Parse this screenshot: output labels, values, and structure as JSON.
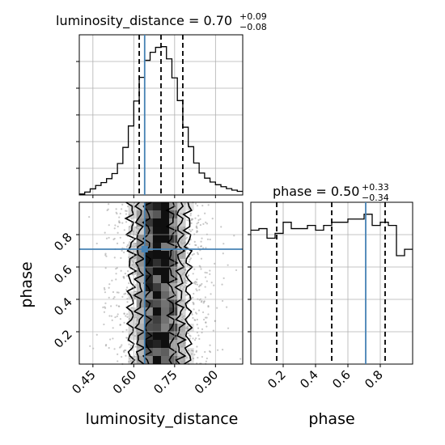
{
  "chart_data": {
    "type": "corner",
    "parameters": [
      "luminosity_distance",
      "phase"
    ],
    "truth": {
      "luminosity_distance": 0.64,
      "phase": 0.71
    },
    "panels": [
      {
        "id": "hist-luminosity_distance",
        "type": "histogram",
        "title_name": "luminosity_distance",
        "title_value": "0.70",
        "title_plus": "+0.09",
        "title_minus": "−0.08",
        "xlim": [
          0.4,
          1.0
        ],
        "quantiles": [
          0.62,
          0.7,
          0.78
        ],
        "bin_edges": [
          0.4,
          0.42,
          0.44,
          0.46,
          0.48,
          0.5,
          0.52,
          0.54,
          0.56,
          0.58,
          0.6,
          0.62,
          0.64,
          0.66,
          0.68,
          0.7,
          0.72,
          0.74,
          0.76,
          0.78,
          0.8,
          0.82,
          0.84,
          0.86,
          0.88,
          0.9,
          0.92,
          0.94,
          0.96,
          0.98,
          1.0
        ],
        "counts": [
          0.4,
          1.2,
          2.5,
          3.9,
          5.1,
          6.7,
          8.8,
          12.9,
          19.5,
          28.3,
          38.5,
          48.2,
          55.2,
          58.5,
          60.5,
          60.8,
          55.8,
          48.0,
          38.7,
          27.8,
          19.8,
          13.1,
          9.0,
          6.9,
          5.3,
          4.2,
          3.4,
          2.6,
          2.0,
          1.5
        ]
      },
      {
        "id": "hist-phase",
        "type": "histogram",
        "title_name": "phase",
        "title_value": "0.50",
        "title_plus": "+0.33",
        "title_minus": "−0.34",
        "xlim": [
          0.0,
          1.0
        ],
        "quantiles": [
          0.16,
          0.5,
          0.83
        ],
        "bin_edges": [
          0.0,
          0.05,
          0.1,
          0.15,
          0.2,
          0.25,
          0.3,
          0.35,
          0.4,
          0.45,
          0.5,
          0.55,
          0.6,
          0.65,
          0.7,
          0.75,
          0.8,
          0.85,
          0.9,
          0.95,
          1.0
        ],
        "counts": [
          0.84,
          0.85,
          0.79,
          0.82,
          0.89,
          0.85,
          0.85,
          0.87,
          0.84,
          0.87,
          0.89,
          0.89,
          0.91,
          0.91,
          0.94,
          0.87,
          0.89,
          0.87,
          0.68,
          0.72
        ]
      },
      {
        "id": "scatter-luminosity_distance-phase",
        "type": "2d-density",
        "xlim": [
          0.4,
          1.0
        ],
        "ylim": [
          0.0,
          1.0
        ],
        "description_bins": "dark density core around luminosity_distance 0.64-0.74, spanning full phase range"
      }
    ],
    "ticks": {
      "luminosity_distance": [
        "0.45",
        "0.60",
        "0.75",
        "0.90"
      ],
      "phase_y": [
        "0.2",
        "0.4",
        "0.6",
        "0.8"
      ],
      "phase_x": [
        "0.2",
        "0.4",
        "0.6",
        "0.8"
      ]
    },
    "xlabel_left": "luminosity_distance",
    "xlabel_right": "phase",
    "ylabel": "phase",
    "grid": true,
    "colors": {
      "truth": "#4682b4",
      "hist": "#000000",
      "quantile": "#000000",
      "grid": "#b0b0b0"
    }
  }
}
